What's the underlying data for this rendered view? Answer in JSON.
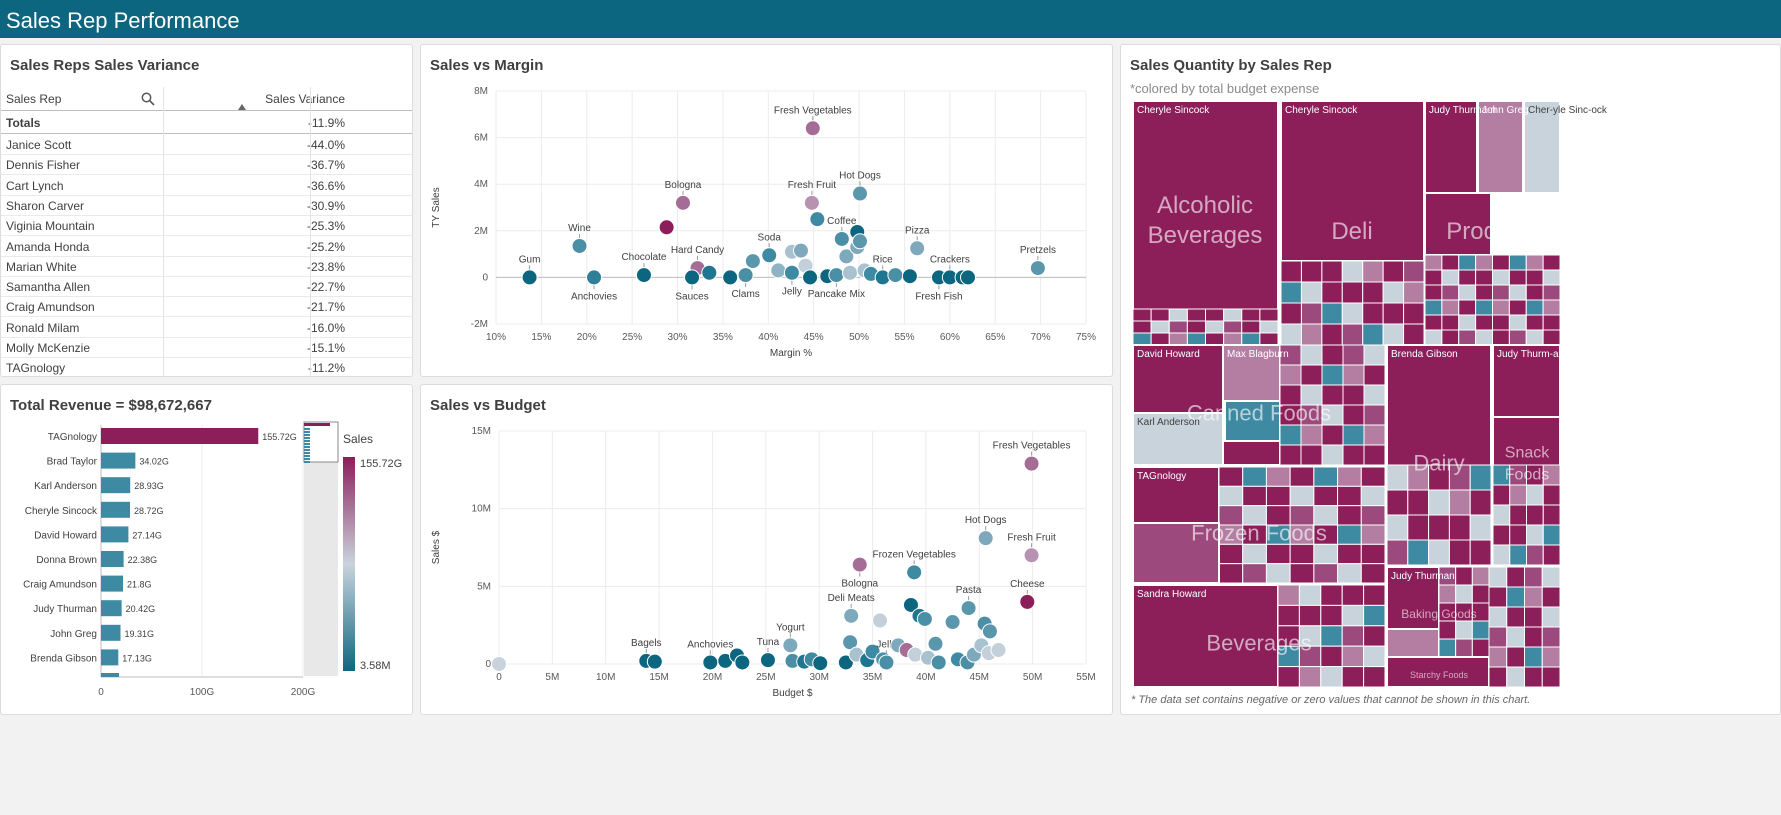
{
  "app": {
    "title": "Sales Rep Performance"
  },
  "variance": {
    "title": "Sales Reps Sales Variance",
    "col_rep": "Sales Rep",
    "col_var": "Sales Variance",
    "totals_label": "Totals",
    "totals_value": "-11.9%",
    "rows": [
      {
        "rep": "Janice Scott",
        "val": "-44.0%"
      },
      {
        "rep": "Dennis Fisher",
        "val": "-36.7%"
      },
      {
        "rep": "Cart Lynch",
        "val": "-36.6%"
      },
      {
        "rep": "Sharon Carver",
        "val": "-30.9%"
      },
      {
        "rep": "Viginia Mountain",
        "val": "-25.3%"
      },
      {
        "rep": "Amanda Honda",
        "val": "-25.2%"
      },
      {
        "rep": "Marian White",
        "val": "-23.8%"
      },
      {
        "rep": "Samantha Allen",
        "val": "-22.7%"
      },
      {
        "rep": "Craig Amundson",
        "val": "-21.7%"
      },
      {
        "rep": "Ronald Milam",
        "val": "-16.0%"
      },
      {
        "rep": "Molly McKenzie",
        "val": "-15.1%"
      },
      {
        "rep": "TAGnology",
        "val": "-11.2%"
      }
    ]
  },
  "revenue": {
    "title": "Total Revenue = $98,672,667",
    "legend_title": "Sales",
    "legend_max": "155.72G",
    "legend_min": "3.58M",
    "colors": {
      "high": "#8c1e5a",
      "mid": "#c9d3dc",
      "low": "#0d6680"
    }
  },
  "scatter1": {
    "title": "Sales vs Margin"
  },
  "scatter2": {
    "title": "Sales vs Budget"
  },
  "treemap": {
    "title": "Sales Quantity by Sales Rep",
    "subtitle": "*colored by total budget expense",
    "footnote": "* The data set contains negative or zero values that cannot be shown in this chart.",
    "categories": [
      {
        "label": "Alcoholic Beverages"
      },
      {
        "label": "Deli"
      },
      {
        "label": "Produce"
      },
      {
        "label": "Canned Foods"
      },
      {
        "label": "Dairy"
      },
      {
        "label": "Snack Foods"
      },
      {
        "label": "Frozen Foods"
      },
      {
        "label": "Beverages"
      },
      {
        "label": "Baking Goods"
      },
      {
        "label": "Starchy Foods"
      }
    ],
    "reps": [
      {
        "label": "Cheryle Sincock"
      },
      {
        "label": "Cheryle Sincock"
      },
      {
        "label": "Judy Thurma-n"
      },
      {
        "label": "John Greg"
      },
      {
        "label": "Cher-yle Sinc-ock"
      },
      {
        "label": "David Howard"
      },
      {
        "label": "Max Blagburn"
      },
      {
        "label": "Karl Anderson"
      },
      {
        "label": "Brenda Gibson"
      },
      {
        "label": "Judy Thurm-an"
      },
      {
        "label": "TAGnology"
      },
      {
        "label": "Sandra Howard"
      },
      {
        "label": "Judy Thurman"
      }
    ]
  },
  "chart_data": [
    {
      "type": "bar",
      "title": "Total Revenue = $98,672,667",
      "orientation": "horizontal",
      "categories": [
        "TAGnology",
        "Brad Taylor",
        "Karl Anderson",
        "Cheryle Sincock",
        "David Howard",
        "Donna Brown",
        "Craig Amundson",
        "Judy Thurman",
        "John Greg",
        "Brenda Gibson"
      ],
      "values": [
        155.72,
        34.02,
        28.93,
        28.72,
        27.14,
        22.38,
        21.8,
        20.42,
        19.31,
        17.13
      ],
      "value_labels": [
        "155.72G",
        "34.02G",
        "28.93G",
        "28.72G",
        "27.14G",
        "22.38G",
        "21.8G",
        "20.42G",
        "19.31G",
        "17.13G"
      ],
      "xticks": [
        "0",
        "100G",
        "200G"
      ],
      "xlim": [
        0,
        200
      ]
    },
    {
      "type": "scatter",
      "title": "Sales vs Margin",
      "xlabel": "Margin %",
      "ylabel": "TY Sales",
      "xlim": [
        10,
        75
      ],
      "ylim": [
        -2,
        8
      ],
      "xticks": [
        "10%",
        "15%",
        "20%",
        "25%",
        "30%",
        "35%",
        "40%",
        "45%",
        "50%",
        "55%",
        "60%",
        "65%",
        "70%",
        "75%"
      ],
      "yticks": [
        "-2M",
        "0",
        "2M",
        "4M",
        "6M",
        "8M"
      ],
      "points": [
        {
          "x": 13.7,
          "y": 0,
          "label": "Gum",
          "c": "#0d6680"
        },
        {
          "x": 19.2,
          "y": 1.35,
          "label": "Wine",
          "c": "#4a8fa6"
        },
        {
          "x": 20.8,
          "y": 0,
          "label": "Anchovies",
          "c": "#2f7f99"
        },
        {
          "x": 26.3,
          "y": 0.1,
          "label": "Chocolate",
          "c": "#0d6680"
        },
        {
          "x": 28.8,
          "y": 2.15,
          "label": "",
          "c": "#8c1e5a"
        },
        {
          "x": 30.6,
          "y": 3.2,
          "label": "Bologna",
          "c": "#a56c95"
        },
        {
          "x": 32.2,
          "y": 0.4,
          "label": "Hard Candy",
          "c": "#a56c95"
        },
        {
          "x": 31.6,
          "y": 0,
          "label": "Sauces",
          "c": "#0d6680"
        },
        {
          "x": 33.5,
          "y": 0.2,
          "label": "",
          "c": "#1e7690"
        },
        {
          "x": 35.8,
          "y": 0,
          "label": "",
          "c": "#0d6680"
        },
        {
          "x": 37.5,
          "y": 0.1,
          "label": "Clams",
          "c": "#4a8fa6"
        },
        {
          "x": 38.3,
          "y": 0.7,
          "label": "",
          "c": "#5a97ad"
        },
        {
          "x": 40.1,
          "y": 0.95,
          "label": "Soda",
          "c": "#3d8aa2"
        },
        {
          "x": 41.1,
          "y": 0.3,
          "label": "",
          "c": "#8fb2c4"
        },
        {
          "x": 42.6,
          "y": 1.1,
          "label": "",
          "c": "#a9c2d0"
        },
        {
          "x": 43.6,
          "y": 1.15,
          "label": "",
          "c": "#7ea8bb"
        },
        {
          "x": 42.6,
          "y": 0.2,
          "label": "Jelly",
          "c": "#3d8aa2"
        },
        {
          "x": 44.1,
          "y": 0.5,
          "label": "",
          "c": "#c3d0da"
        },
        {
          "x": 44.6,
          "y": 0,
          "label": "",
          "c": "#0d6680"
        },
        {
          "x": 44.9,
          "y": 6.4,
          "label": "Fresh Vegetables",
          "c": "#a56c95"
        },
        {
          "x": 44.8,
          "y": 3.2,
          "label": "Fresh Fruit",
          "c": "#b892b1"
        },
        {
          "x": 45.4,
          "y": 2.5,
          "label": "",
          "c": "#3d8aa2"
        },
        {
          "x": 46.5,
          "y": 0.05,
          "label": "",
          "c": "#0d6680"
        },
        {
          "x": 47.5,
          "y": 0.1,
          "label": "Pancake Mix",
          "c": "#4a8fa6"
        },
        {
          "x": 48.1,
          "y": 1.65,
          "label": "Coffee",
          "c": "#4a8fa6"
        },
        {
          "x": 48.6,
          "y": 0.9,
          "label": "",
          "c": "#7ea8bb"
        },
        {
          "x": 49.0,
          "y": 0.2,
          "label": "",
          "c": "#a9c2d0"
        },
        {
          "x": 49.8,
          "y": 1.3,
          "label": "",
          "c": "#7ea8bb"
        },
        {
          "x": 49.8,
          "y": 1.95,
          "label": "",
          "c": "#0d6680"
        },
        {
          "x": 50.1,
          "y": 1.55,
          "label": "",
          "c": "#5a97ad"
        },
        {
          "x": 50.1,
          "y": 3.6,
          "label": "Hot Dogs",
          "c": "#5a97ad"
        },
        {
          "x": 50.6,
          "y": 0.3,
          "label": "",
          "c": "#a9c2d0"
        },
        {
          "x": 51.3,
          "y": 0.15,
          "label": "",
          "c": "#3d8aa2"
        },
        {
          "x": 52.6,
          "y": 0,
          "label": "Rice",
          "c": "#1e7690"
        },
        {
          "x": 54.0,
          "y": 0.1,
          "label": "",
          "c": "#4a8fa6"
        },
        {
          "x": 55.6,
          "y": 0.05,
          "label": "",
          "c": "#0d6680"
        },
        {
          "x": 56.4,
          "y": 1.25,
          "label": "Pizza",
          "c": "#7ea8bb"
        },
        {
          "x": 58.8,
          "y": 0,
          "label": "Fresh Fish",
          "c": "#0d6680"
        },
        {
          "x": 60.0,
          "y": 0,
          "label": "Crackers",
          "c": "#0d6680"
        },
        {
          "x": 61.4,
          "y": 0,
          "label": "",
          "c": "#0d6680"
        },
        {
          "x": 62.0,
          "y": 0,
          "label": "",
          "c": "#0d6680"
        },
        {
          "x": 69.7,
          "y": 0.4,
          "label": "Pretzels",
          "c": "#5a97ad"
        }
      ]
    },
    {
      "type": "scatter",
      "title": "Sales vs Budget",
      "xlabel": "Budget $",
      "ylabel": "Sales $",
      "xlim": [
        0,
        55
      ],
      "ylim": [
        0,
        15
      ],
      "xticks": [
        "0",
        "5M",
        "10M",
        "15M",
        "20M",
        "25M",
        "30M",
        "35M",
        "40M",
        "45M",
        "50M",
        "55M"
      ],
      "yticks": [
        "0",
        "5M",
        "10M",
        "15M"
      ],
      "points": [
        {
          "x": 0,
          "y": 0,
          "label": "",
          "c": "#c9d3dc"
        },
        {
          "x": 13.8,
          "y": 0.2,
          "label": "Bagels",
          "c": "#0d6680"
        },
        {
          "x": 14.6,
          "y": 0.15,
          "label": "",
          "c": "#0d6680"
        },
        {
          "x": 19.8,
          "y": 0.1,
          "label": "Anchovies",
          "c": "#0d6680"
        },
        {
          "x": 21.2,
          "y": 0.2,
          "label": "",
          "c": "#0d6680"
        },
        {
          "x": 22.3,
          "y": 0.55,
          "label": "",
          "c": "#0d6680"
        },
        {
          "x": 22.8,
          "y": 0.1,
          "label": "",
          "c": "#0d6680"
        },
        {
          "x": 25.2,
          "y": 0.25,
          "label": "Tuna",
          "c": "#0d6680"
        },
        {
          "x": 27.3,
          "y": 1.2,
          "label": "Yogurt",
          "c": "#7ea8bb"
        },
        {
          "x": 27.5,
          "y": 0.2,
          "label": "",
          "c": "#4a8fa6"
        },
        {
          "x": 28.6,
          "y": 0.15,
          "label": "",
          "c": "#1e7690"
        },
        {
          "x": 29.3,
          "y": 0.3,
          "label": "",
          "c": "#3d8aa2"
        },
        {
          "x": 30.1,
          "y": 0.05,
          "label": "",
          "c": "#0d6680"
        },
        {
          "x": 32.5,
          "y": 0.1,
          "label": "",
          "c": "#0d6680"
        },
        {
          "x": 32.9,
          "y": 1.4,
          "label": "",
          "c": "#5a97ad"
        },
        {
          "x": 33.0,
          "y": 3.1,
          "label": "Deli Meats",
          "c": "#7ea8bb"
        },
        {
          "x": 33.5,
          "y": 0.6,
          "label": "",
          "c": "#a9c2d0"
        },
        {
          "x": 33.8,
          "y": 6.4,
          "label": "Bologna",
          "c": "#a56c95"
        },
        {
          "x": 34.5,
          "y": 0.25,
          "label": "",
          "c": "#1e7690"
        },
        {
          "x": 35.0,
          "y": 0.8,
          "label": "",
          "c": "#3d8aa2"
        },
        {
          "x": 35.7,
          "y": 2.8,
          "label": "",
          "c": "#c3d0da"
        },
        {
          "x": 36.0,
          "y": 0.3,
          "label": "",
          "c": "#4a8fa6"
        },
        {
          "x": 36.3,
          "y": 0.1,
          "label": "Jelly",
          "c": "#4a8fa6"
        },
        {
          "x": 37.4,
          "y": 1.2,
          "label": "",
          "c": "#7ea8bb"
        },
        {
          "x": 38.2,
          "y": 0.9,
          "label": "",
          "c": "#a56c95"
        },
        {
          "x": 38.6,
          "y": 3.8,
          "label": "",
          "c": "#0d6680"
        },
        {
          "x": 38.9,
          "y": 5.9,
          "label": "Frozen Vegetables",
          "c": "#3d8aa2"
        },
        {
          "x": 39.0,
          "y": 0.6,
          "label": "",
          "c": "#c3d0da"
        },
        {
          "x": 39.4,
          "y": 3.1,
          "label": "",
          "c": "#1e7690"
        },
        {
          "x": 39.9,
          "y": 2.9,
          "label": "",
          "c": "#4a8fa6"
        },
        {
          "x": 40.2,
          "y": 0.4,
          "label": "",
          "c": "#a9c2d0"
        },
        {
          "x": 40.9,
          "y": 1.3,
          "label": "",
          "c": "#5a97ad"
        },
        {
          "x": 41.2,
          "y": 0.1,
          "label": "",
          "c": "#4a8fa6"
        },
        {
          "x": 42.5,
          "y": 2.7,
          "label": "",
          "c": "#5a97ad"
        },
        {
          "x": 43.0,
          "y": 0.3,
          "label": "",
          "c": "#3d8aa2"
        },
        {
          "x": 43.9,
          "y": 0.1,
          "label": "",
          "c": "#4a8fa6"
        },
        {
          "x": 44.0,
          "y": 3.6,
          "label": "Pasta",
          "c": "#5a97ad"
        },
        {
          "x": 44.5,
          "y": 0.6,
          "label": "",
          "c": "#7ea8bb"
        },
        {
          "x": 45.2,
          "y": 1.2,
          "label": "",
          "c": "#a9c2d0"
        },
        {
          "x": 45.5,
          "y": 2.6,
          "label": "",
          "c": "#4a8fa6"
        },
        {
          "x": 45.6,
          "y": 8.1,
          "label": "Hot Dogs",
          "c": "#7ea8bb"
        },
        {
          "x": 45.9,
          "y": 0.7,
          "label": "",
          "c": "#c3d0da"
        },
        {
          "x": 46.0,
          "y": 2.1,
          "label": "",
          "c": "#5a97ad"
        },
        {
          "x": 46.8,
          "y": 0.9,
          "label": "",
          "c": "#c3d0da"
        },
        {
          "x": 49.5,
          "y": 4.0,
          "label": "Cheese",
          "c": "#8c1e5a"
        },
        {
          "x": 49.9,
          "y": 12.9,
          "label": "Fresh Vegetables",
          "c": "#a56c95"
        },
        {
          "x": 49.9,
          "y": 7.0,
          "label": "Fresh Fruit",
          "c": "#b892b1"
        }
      ]
    }
  ]
}
